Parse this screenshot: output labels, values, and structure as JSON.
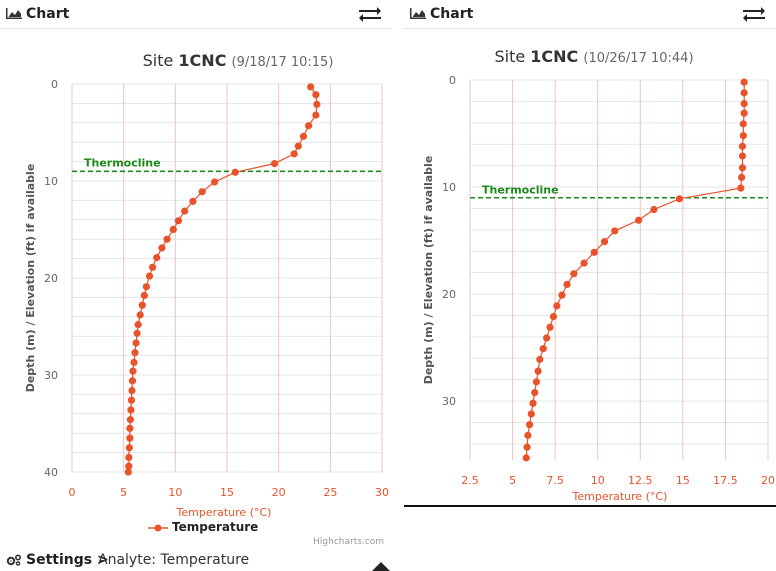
{
  "panels": [
    {
      "header": {
        "title": "Chart",
        "icon": "area-chart-icon",
        "swap_icon": "swap-arrows-icon"
      },
      "chart_data": {
        "type": "line",
        "title_prefix": "Site ",
        "title_site": "1CNC",
        "subtitle": "(9/18/17 10:15)",
        "ylabel": "Depth (m) / Elevation (ft) if available",
        "xlabel": "Temperature (°C)",
        "y_reversed": true,
        "xlim": [
          0,
          30
        ],
        "ylim": [
          0,
          40
        ],
        "x_ticks": [
          0,
          5,
          10,
          15,
          20,
          25,
          30
        ],
        "y_ticks": [
          0,
          10,
          20,
          30,
          40
        ],
        "series": [
          {
            "name": "Temperature",
            "color": "#e8532a",
            "points": [
              [
                23.1,
                0.3
              ],
              [
                23.6,
                1.1
              ],
              [
                23.7,
                2.1
              ],
              [
                23.6,
                3.2
              ],
              [
                22.9,
                4.3
              ],
              [
                22.4,
                5.4
              ],
              [
                21.9,
                6.4
              ],
              [
                21.5,
                7.2
              ],
              [
                19.6,
                8.2
              ],
              [
                15.8,
                9.1
              ],
              [
                13.8,
                10.1
              ],
              [
                12.6,
                11.1
              ],
              [
                11.7,
                12.1
              ],
              [
                10.9,
                13.1
              ],
              [
                10.3,
                14.1
              ],
              [
                9.8,
                15.0
              ],
              [
                9.2,
                16.0
              ],
              [
                8.7,
                16.9
              ],
              [
                8.2,
                17.9
              ],
              [
                7.8,
                18.9
              ],
              [
                7.5,
                19.8
              ],
              [
                7.2,
                20.9
              ],
              [
                7.0,
                21.8
              ],
              [
                6.8,
                22.8
              ],
              [
                6.6,
                23.8
              ],
              [
                6.4,
                24.8
              ],
              [
                6.3,
                25.7
              ],
              [
                6.2,
                26.7
              ],
              [
                6.1,
                27.7
              ],
              [
                6.0,
                28.7
              ],
              [
                5.9,
                29.6
              ],
              [
                5.85,
                30.6
              ],
              [
                5.8,
                31.6
              ],
              [
                5.75,
                32.6
              ],
              [
                5.7,
                33.6
              ],
              [
                5.65,
                34.6
              ],
              [
                5.6,
                35.5
              ],
              [
                5.6,
                36.5
              ],
              [
                5.55,
                37.5
              ],
              [
                5.5,
                38.5
              ],
              [
                5.5,
                39.4
              ],
              [
                5.45,
                40.0
              ]
            ]
          }
        ],
        "thermocline": {
          "label": "Thermocline",
          "depth": 9,
          "color": "#1a8a1a"
        },
        "legend": {
          "label": "Temperature"
        },
        "credits": "Highcharts.com"
      },
      "settings": {
        "label": "Settings >",
        "analyte": "Analyte: Temperature"
      }
    },
    {
      "header": {
        "title": "Chart",
        "icon": "area-chart-icon",
        "swap_icon": "swap-arrows-icon"
      },
      "chart_data": {
        "type": "line",
        "title_prefix": "Site ",
        "title_site": "1CNC",
        "subtitle": "(10/26/17 10:44)",
        "ylabel": "Depth (m) / Elevation (ft) if available",
        "xlabel": "Temperature (°C)",
        "y_reversed": true,
        "xlim": [
          2.5,
          20
        ],
        "ylim": [
          0,
          35.5
        ],
        "x_ticks": [
          2.5,
          5,
          7.5,
          10,
          12.5,
          15,
          17.5,
          20
        ],
        "y_ticks": [
          0,
          10,
          20,
          30
        ],
        "series": [
          {
            "name": "Temperature",
            "color": "#e8532a",
            "points": [
              [
                18.6,
                0.2
              ],
              [
                18.6,
                1.2
              ],
              [
                18.6,
                2.2
              ],
              [
                18.6,
                3.1
              ],
              [
                18.55,
                4.1
              ],
              [
                18.55,
                5.2
              ],
              [
                18.5,
                6.2
              ],
              [
                18.5,
                7.1
              ],
              [
                18.5,
                8.2
              ],
              [
                18.45,
                9.1
              ],
              [
                18.4,
                10.1
              ],
              [
                14.8,
                11.1
              ],
              [
                13.3,
                12.1
              ],
              [
                12.4,
                13.1
              ],
              [
                11.0,
                14.1
              ],
              [
                10.4,
                15.1
              ],
              [
                9.8,
                16.1
              ],
              [
                9.2,
                17.1
              ],
              [
                8.6,
                18.1
              ],
              [
                8.2,
                19.1
              ],
              [
                7.9,
                20.1
              ],
              [
                7.6,
                21.1
              ],
              [
                7.4,
                22.1
              ],
              [
                7.2,
                23.1
              ],
              [
                7.0,
                24.1
              ],
              [
                6.8,
                25.1
              ],
              [
                6.6,
                26.1
              ],
              [
                6.5,
                27.2
              ],
              [
                6.4,
                28.2
              ],
              [
                6.3,
                29.2
              ],
              [
                6.2,
                30.2
              ],
              [
                6.1,
                31.2
              ],
              [
                6.0,
                32.2
              ],
              [
                5.9,
                33.2
              ],
              [
                5.85,
                34.3
              ],
              [
                5.8,
                35.3
              ]
            ]
          }
        ],
        "thermocline": {
          "label": "Thermocline",
          "depth": 11,
          "color": "#1a8a1a"
        }
      }
    }
  ]
}
